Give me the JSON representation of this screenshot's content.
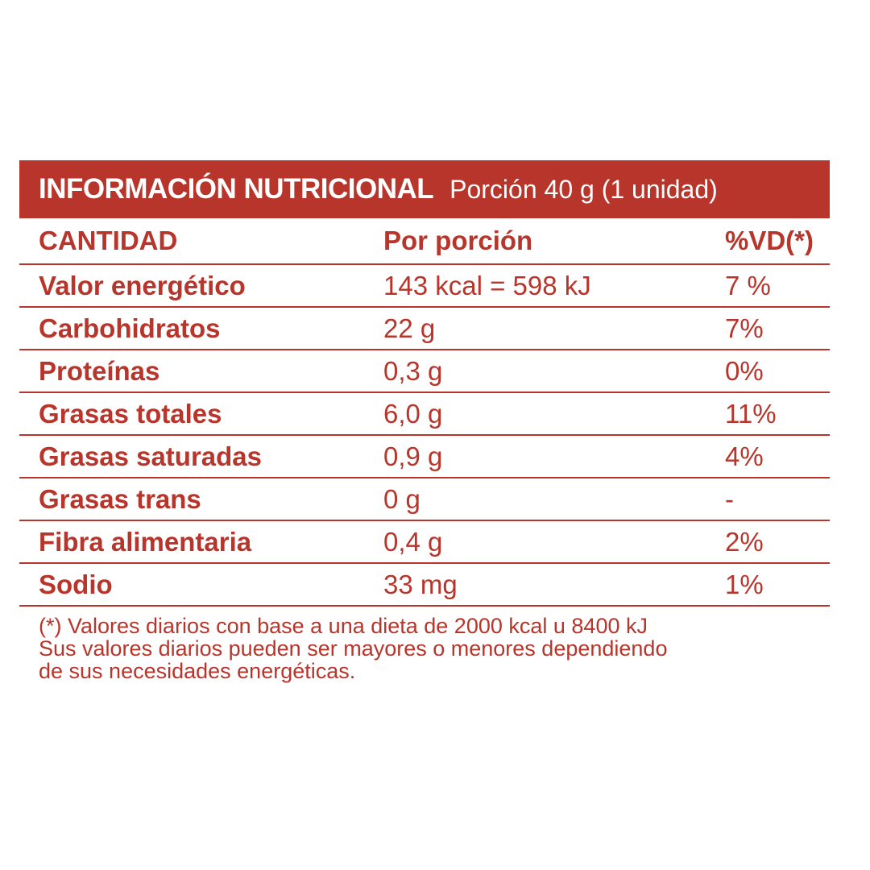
{
  "colors": {
    "accent": "#b8352b",
    "background": "#ffffff"
  },
  "header": {
    "title": "INFORMACIÓN NUTRICIONAL",
    "portion": "Porción 40 g (1 unidad)"
  },
  "columns": {
    "quantity": "CANTIDAD",
    "per_portion": "Por porción",
    "dv": "%VD(*)"
  },
  "rows": [
    {
      "name": "Valor energético",
      "amount": "143 kcal = 598 kJ",
      "dv": "7 %"
    },
    {
      "name": "Carbohidratos",
      "amount": "22 g",
      "dv": "7%"
    },
    {
      "name": "Proteínas",
      "amount": "0,3 g",
      "dv": "0%"
    },
    {
      "name": "Grasas totales",
      "amount": "6,0 g",
      "dv": "11%"
    },
    {
      "name": "Grasas saturadas",
      "amount": "0,9 g",
      "dv": "4%"
    },
    {
      "name": "Grasas trans",
      "amount": "0 g",
      "dv": "-"
    },
    {
      "name": "Fibra alimentaria",
      "amount": "0,4 g",
      "dv": "2%"
    },
    {
      "name": "Sodio",
      "amount": "33 mg",
      "dv": "1%"
    }
  ],
  "footnote": {
    "line1": "(*) Valores diarios con base a una dieta de 2000 kcal u 8400 kJ",
    "line2": "Sus valores diarios pueden ser mayores o menores dependiendo",
    "line3": "de sus necesidades energéticas."
  }
}
